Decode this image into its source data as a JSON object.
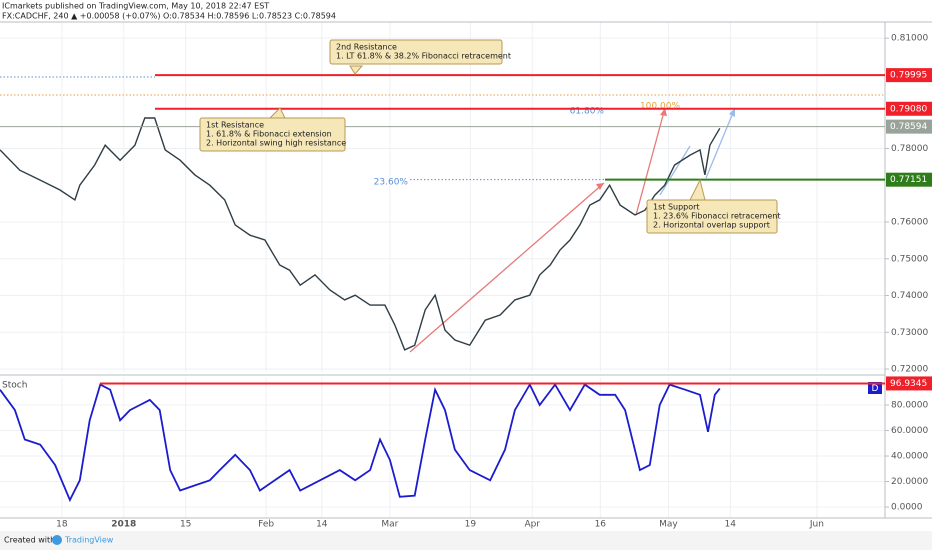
{
  "chart_data": [
    {
      "type": "line",
      "title": "ICmarkets published on TradingView.com, May 10, 2018 22:47 EST",
      "subtitle": "FX:CADCHF, 240 ▲ +0.00058 (+0.07%) O:0.78534 H:0.78596 L:0.78523 C:0.78594",
      "color": "#2f3d45",
      "x": [
        0,
        3.2,
        6.5,
        9.7,
        12.1,
        12.9,
        15.3,
        17,
        19.4,
        21.8,
        23.4,
        25,
        26.7,
        29.1,
        31.5,
        33.9,
        36.3,
        38,
        40.4,
        42.8,
        45.2,
        46.8,
        48.5,
        50.9,
        53.3,
        55.7,
        57.4,
        59.8,
        62.2,
        63.8,
        65.4,
        67,
        68.7,
        70.3,
        71.9,
        73.5,
        75.9,
        78.4,
        80.8,
        83.2,
        85.6,
        87.2,
        88.9,
        90.5,
        92.1,
        93.7,
        95.3,
        96.9,
        98.5,
        100.2,
        102.6,
        104.2,
        105.8,
        107.4,
        109,
        111.5,
        113.1,
        113.9,
        114.7,
        116.3
      ],
      "values": [
        0.7796,
        0.7741,
        0.7714,
        0.7687,
        0.766,
        0.77,
        0.7755,
        0.7809,
        0.7768,
        0.7809,
        0.7883,
        0.7883,
        0.7796,
        0.7768,
        0.7728,
        0.77,
        0.766,
        0.7592,
        0.7564,
        0.7551,
        0.7483,
        0.7469,
        0.7428,
        0.7456,
        0.7415,
        0.7388,
        0.7401,
        0.7374,
        0.7374,
        0.732,
        0.7252,
        0.7265,
        0.7361,
        0.7401,
        0.7306,
        0.7279,
        0.7265,
        0.7333,
        0.7347,
        0.7388,
        0.7401,
        0.7456,
        0.7483,
        0.7524,
        0.7551,
        0.7592,
        0.7646,
        0.766,
        0.77,
        0.7646,
        0.7619,
        0.7632,
        0.7673,
        0.77,
        0.7755,
        0.7782,
        0.7796,
        0.7728,
        0.7809,
        0.7855
      ],
      "xlim": [
        0,
        143
      ],
      "xticks": [
        {
          "value": 10,
          "label": "18"
        },
        {
          "value": 20,
          "label": "2018"
        },
        {
          "value": 30,
          "label": "15"
        },
        {
          "value": 43,
          "label": "Feb"
        },
        {
          "value": 52,
          "label": "14"
        },
        {
          "value": 63,
          "label": "Mar"
        },
        {
          "value": 76,
          "label": "19"
        },
        {
          "value": 86,
          "label": "Apr"
        },
        {
          "value": 97,
          "label": "16"
        },
        {
          "value": 108,
          "label": "May"
        },
        {
          "value": 118,
          "label": "14"
        },
        {
          "value": 132,
          "label": "Jun"
        }
      ],
      "ylim": [
        0.7192,
        0.8144
      ],
      "yticks": [
        {
          "value": 0.81,
          "label": "0.81000"
        },
        {
          "value": 0.78,
          "label": "0.78000"
        },
        {
          "value": 0.76,
          "label": "0.76000"
        },
        {
          "value": 0.75,
          "label": "0.75000"
        },
        {
          "value": 0.74,
          "label": "0.74000"
        },
        {
          "value": 0.73,
          "label": "0.73000"
        },
        {
          "value": 0.72,
          "label": "0.72000"
        }
      ],
      "grid": true,
      "levels": [
        {
          "value": 0.79995,
          "color": "#f0202a"
        },
        {
          "value": {
            "value": 0.7908,
            "label": "0.79080"
          },
          "color": "#f0202a"
        },
        {
          "value": 0.78594,
          "color": "#9aa39a"
        },
        {
          "value": 0.77151,
          "color": "#2e7d1a"
        }
      ],
      "fib_labels": [
        "61.80%",
        "100.00%",
        "23.60%"
      ],
      "annotations": [
        [
          "2nd Resistance",
          "1. LT 61.8% & 38.2% Fibonacci retracement"
        ],
        [
          "1st Resistance",
          "1. 61.8% & Fibonacci extension",
          "2. Horizontal swing high resistance"
        ],
        [
          "1st Support",
          "1. 23.6% Fibonacci retracement",
          "2. Horizontal overlap support"
        ]
      ]
    },
    {
      "type": "line",
      "title": "Stoch",
      "color": "#1c1ccf",
      "x": [
        0,
        2.4,
        4,
        6.5,
        8.9,
        11.3,
        12.9,
        14.5,
        16.2,
        17.8,
        19.4,
        21,
        22.6,
        24.2,
        25.8,
        27.5,
        29.1,
        31.5,
        33.9,
        35.5,
        38,
        40.4,
        42,
        44.4,
        46.8,
        48.5,
        51.7,
        54.9,
        57.4,
        59.8,
        61.4,
        63,
        64.6,
        67,
        68.7,
        70.3,
        71.9,
        73.5,
        75.9,
        79.2,
        81.6,
        83.2,
        85.6,
        87.2,
        89.7,
        92.1,
        94.5,
        96.9,
        99.4,
        101,
        103.4,
        105,
        106.6,
        108.2,
        110.7,
        113.1,
        114.4,
        115.5,
        116.3
      ],
      "values": [
        92,
        76,
        53,
        49,
        33,
        5.5,
        21,
        68,
        96,
        92,
        68,
        76,
        80,
        84,
        76,
        29,
        13,
        17,
        21,
        29,
        41,
        29,
        13,
        21,
        29,
        13,
        21,
        29,
        21,
        29,
        53,
        37,
        8,
        9,
        53,
        92,
        76,
        45,
        29,
        21,
        45,
        76,
        96,
        80,
        96,
        76,
        96,
        88,
        88,
        76,
        29,
        33,
        80,
        96,
        92,
        88,
        59,
        88,
        93
      ],
      "ylim": [
        -8.6,
        101.2
      ],
      "yticks": [
        {
          "value": 0,
          "label": "0.0000"
        },
        {
          "value": 20,
          "label": "20.0000"
        },
        {
          "value": 40,
          "label": "40.0000"
        },
        {
          "value": 60,
          "label": "60.0000"
        },
        {
          "value": 80,
          "label": "80.0000"
        }
      ],
      "level": 96.9345,
      "marker": "D"
    }
  ],
  "footer": {
    "prefix": "Created with",
    "brand": "TradingView"
  }
}
